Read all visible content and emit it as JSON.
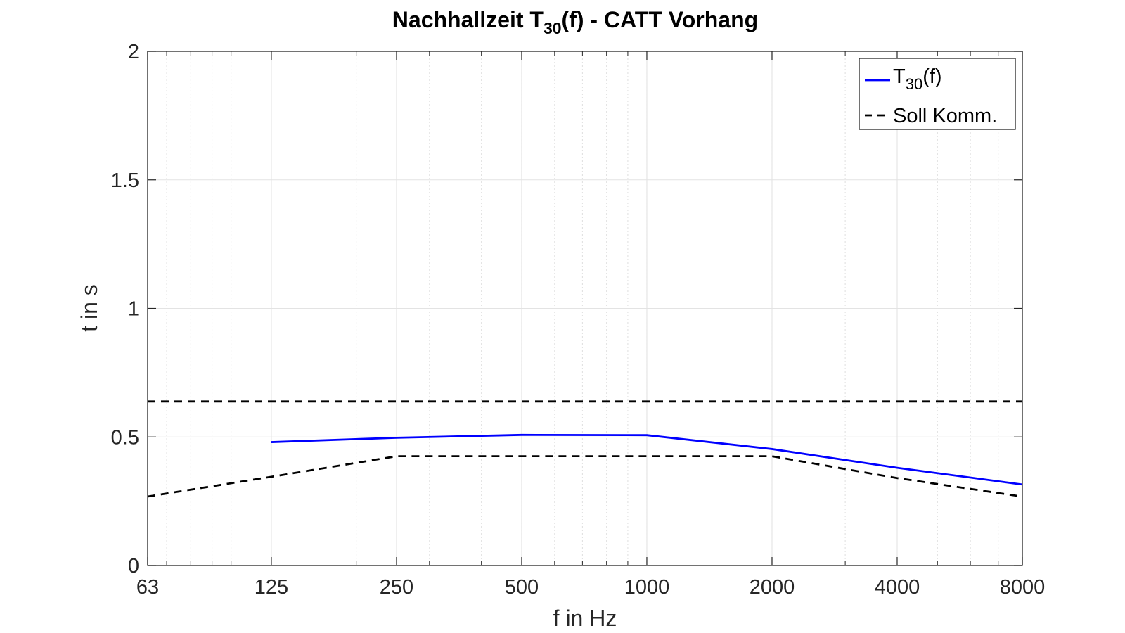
{
  "chart_data": {
    "type": "line",
    "title": {
      "main": "Nachhallzeit T",
      "sub": "30",
      "rest": "(f) - CATT Vorhang"
    },
    "xlabel": "f in Hz",
    "ylabel": "t in s",
    "xscale": "log",
    "xlim": [
      63,
      8000
    ],
    "ylim": [
      0,
      2
    ],
    "xticks": [
      63,
      125,
      250,
      500,
      1000,
      2000,
      4000,
      8000
    ],
    "xtick_labels": [
      "63",
      "125",
      "250",
      "500",
      "1000",
      "2000",
      "4000",
      "8000"
    ],
    "yticks": [
      0,
      0.5,
      1,
      1.5,
      2
    ],
    "ytick_labels": [
      "0",
      "0.5",
      "1",
      "1.5",
      "2"
    ],
    "grid": true,
    "legend_position": "top-right",
    "series": [
      {
        "legend": {
          "main": "T",
          "sub": "30",
          "rest": "(f)"
        },
        "color": "#0000ff",
        "style": "solid",
        "x": [
          125,
          250,
          500,
          1000,
          2000,
          4000,
          8000
        ],
        "y": [
          0.48,
          0.497,
          0.508,
          0.507,
          0.453,
          0.38,
          0.315
        ]
      },
      {
        "legend": {
          "main": "Soll Komm."
        },
        "color": "#000000",
        "style": "dashed",
        "x": [
          63,
          8000
        ],
        "y": [
          0.638,
          0.638
        ]
      },
      {
        "color": "#000000",
        "style": "dashed",
        "x": [
          63,
          125,
          250,
          500,
          1000,
          2000,
          4000,
          8000
        ],
        "y": [
          0.268,
          0.345,
          0.425,
          0.425,
          0.425,
          0.425,
          0.34,
          0.268
        ]
      }
    ]
  }
}
